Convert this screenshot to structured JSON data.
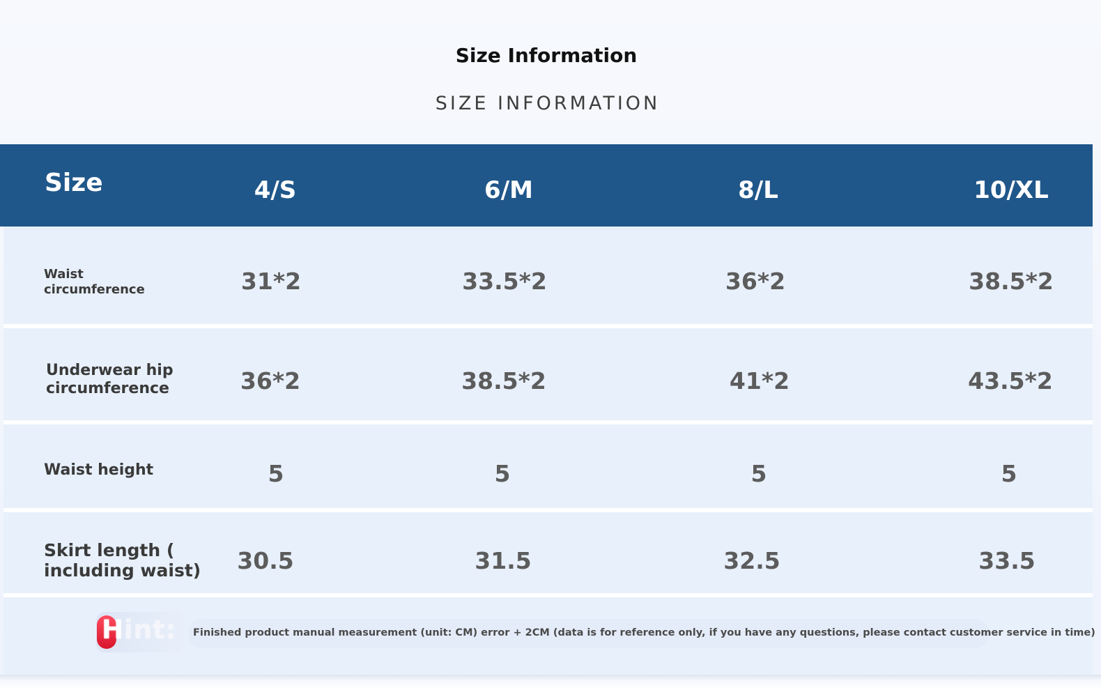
{
  "title": "Size Information",
  "subtitle": "SIZE INFORMATION",
  "colors": {
    "header_bg": "#20578a",
    "row_bg": "#e8f0fb",
    "separator": "#ffffff",
    "hint_accent": "#e8233a"
  },
  "table": {
    "header_label": "Size",
    "sizes": [
      "4/S",
      "6/M",
      "8/L",
      "10/XL"
    ],
    "rows": [
      {
        "label": "Waist\ncircumference",
        "values": [
          "31*2",
          "33.5*2",
          "36*2",
          "38.5*2"
        ]
      },
      {
        "label": "Underwear hip\ncircumference",
        "values": [
          "36*2",
          "38.5*2",
          "41*2",
          "43.5*2"
        ]
      },
      {
        "label": "Waist height",
        "values": [
          "5",
          "5",
          "5",
          "5"
        ]
      },
      {
        "label": "Skirt length (\nincluding waist)",
        "values": [
          "30.5",
          "31.5",
          "32.5",
          "33.5"
        ]
      }
    ]
  },
  "hint": {
    "label_first": "H",
    "label_rest": "int:",
    "text": "Finished product manual measurement (unit: CM) error + 2CM (data is for reference only, if you have any questions, please contact customer service in time)"
  }
}
